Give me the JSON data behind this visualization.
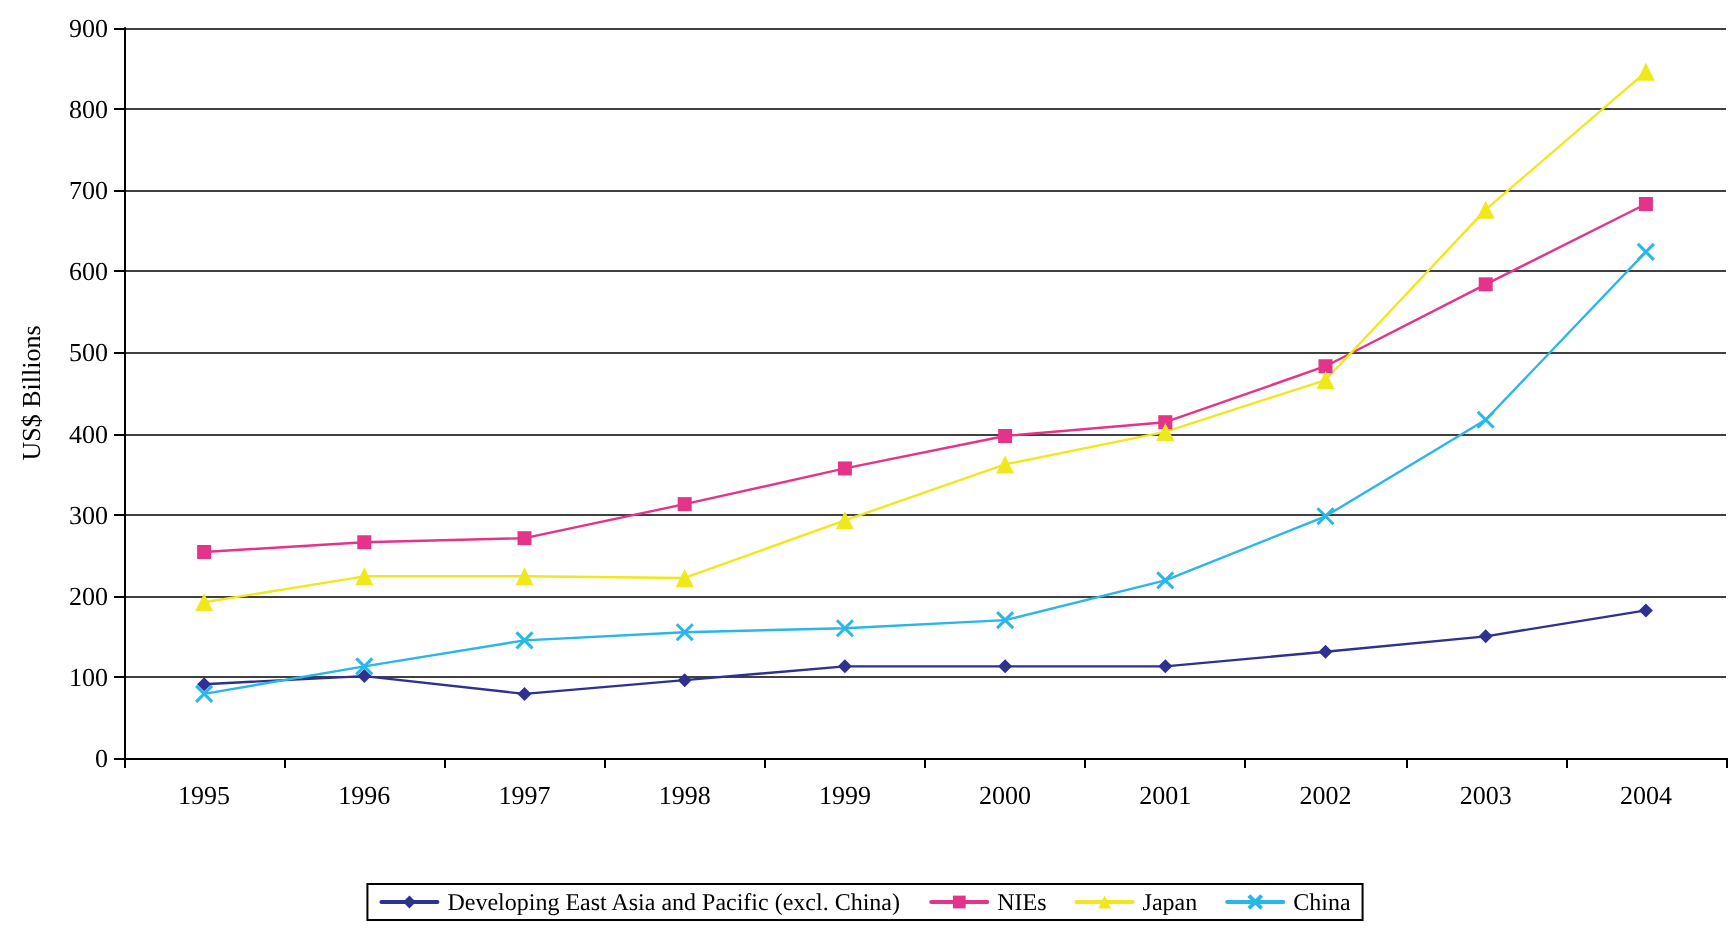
{
  "chart_data": {
    "type": "line",
    "ylabel": "US$ Billions",
    "categories": [
      "1995",
      "1996",
      "1997",
      "1998",
      "1999",
      "2000",
      "2001",
      "2002",
      "2003",
      "2004"
    ],
    "series": [
      {
        "name": "Developing East Asia and Pacific (excl. China)",
        "color": "#2e3192",
        "marker": "diamond",
        "values": [
          91,
          101,
          79,
          96,
          113,
          113,
          113,
          131,
          150,
          182
        ]
      },
      {
        "name": "NIEs",
        "color": "#e6338a",
        "marker": "square",
        "values": [
          254,
          266,
          271,
          313,
          357,
          397,
          414,
          483,
          584,
          683
        ]
      },
      {
        "name": "Japan",
        "color": "#f0e81c",
        "marker": "triangle",
        "values": [
          192,
          224,
          224,
          222,
          293,
          362,
          402,
          466,
          676,
          846
        ]
      },
      {
        "name": "China",
        "color": "#29b6e8",
        "marker": "cross",
        "values": [
          79,
          113,
          145,
          155,
          160,
          170,
          219,
          298,
          417,
          624
        ]
      }
    ],
    "ylim": [
      0,
      900
    ],
    "yticks": [
      0,
      100,
      200,
      300,
      400,
      500,
      600,
      700,
      800,
      900
    ],
    "grid": "y",
    "legend": "bottom",
    "line_style": "solid"
  }
}
